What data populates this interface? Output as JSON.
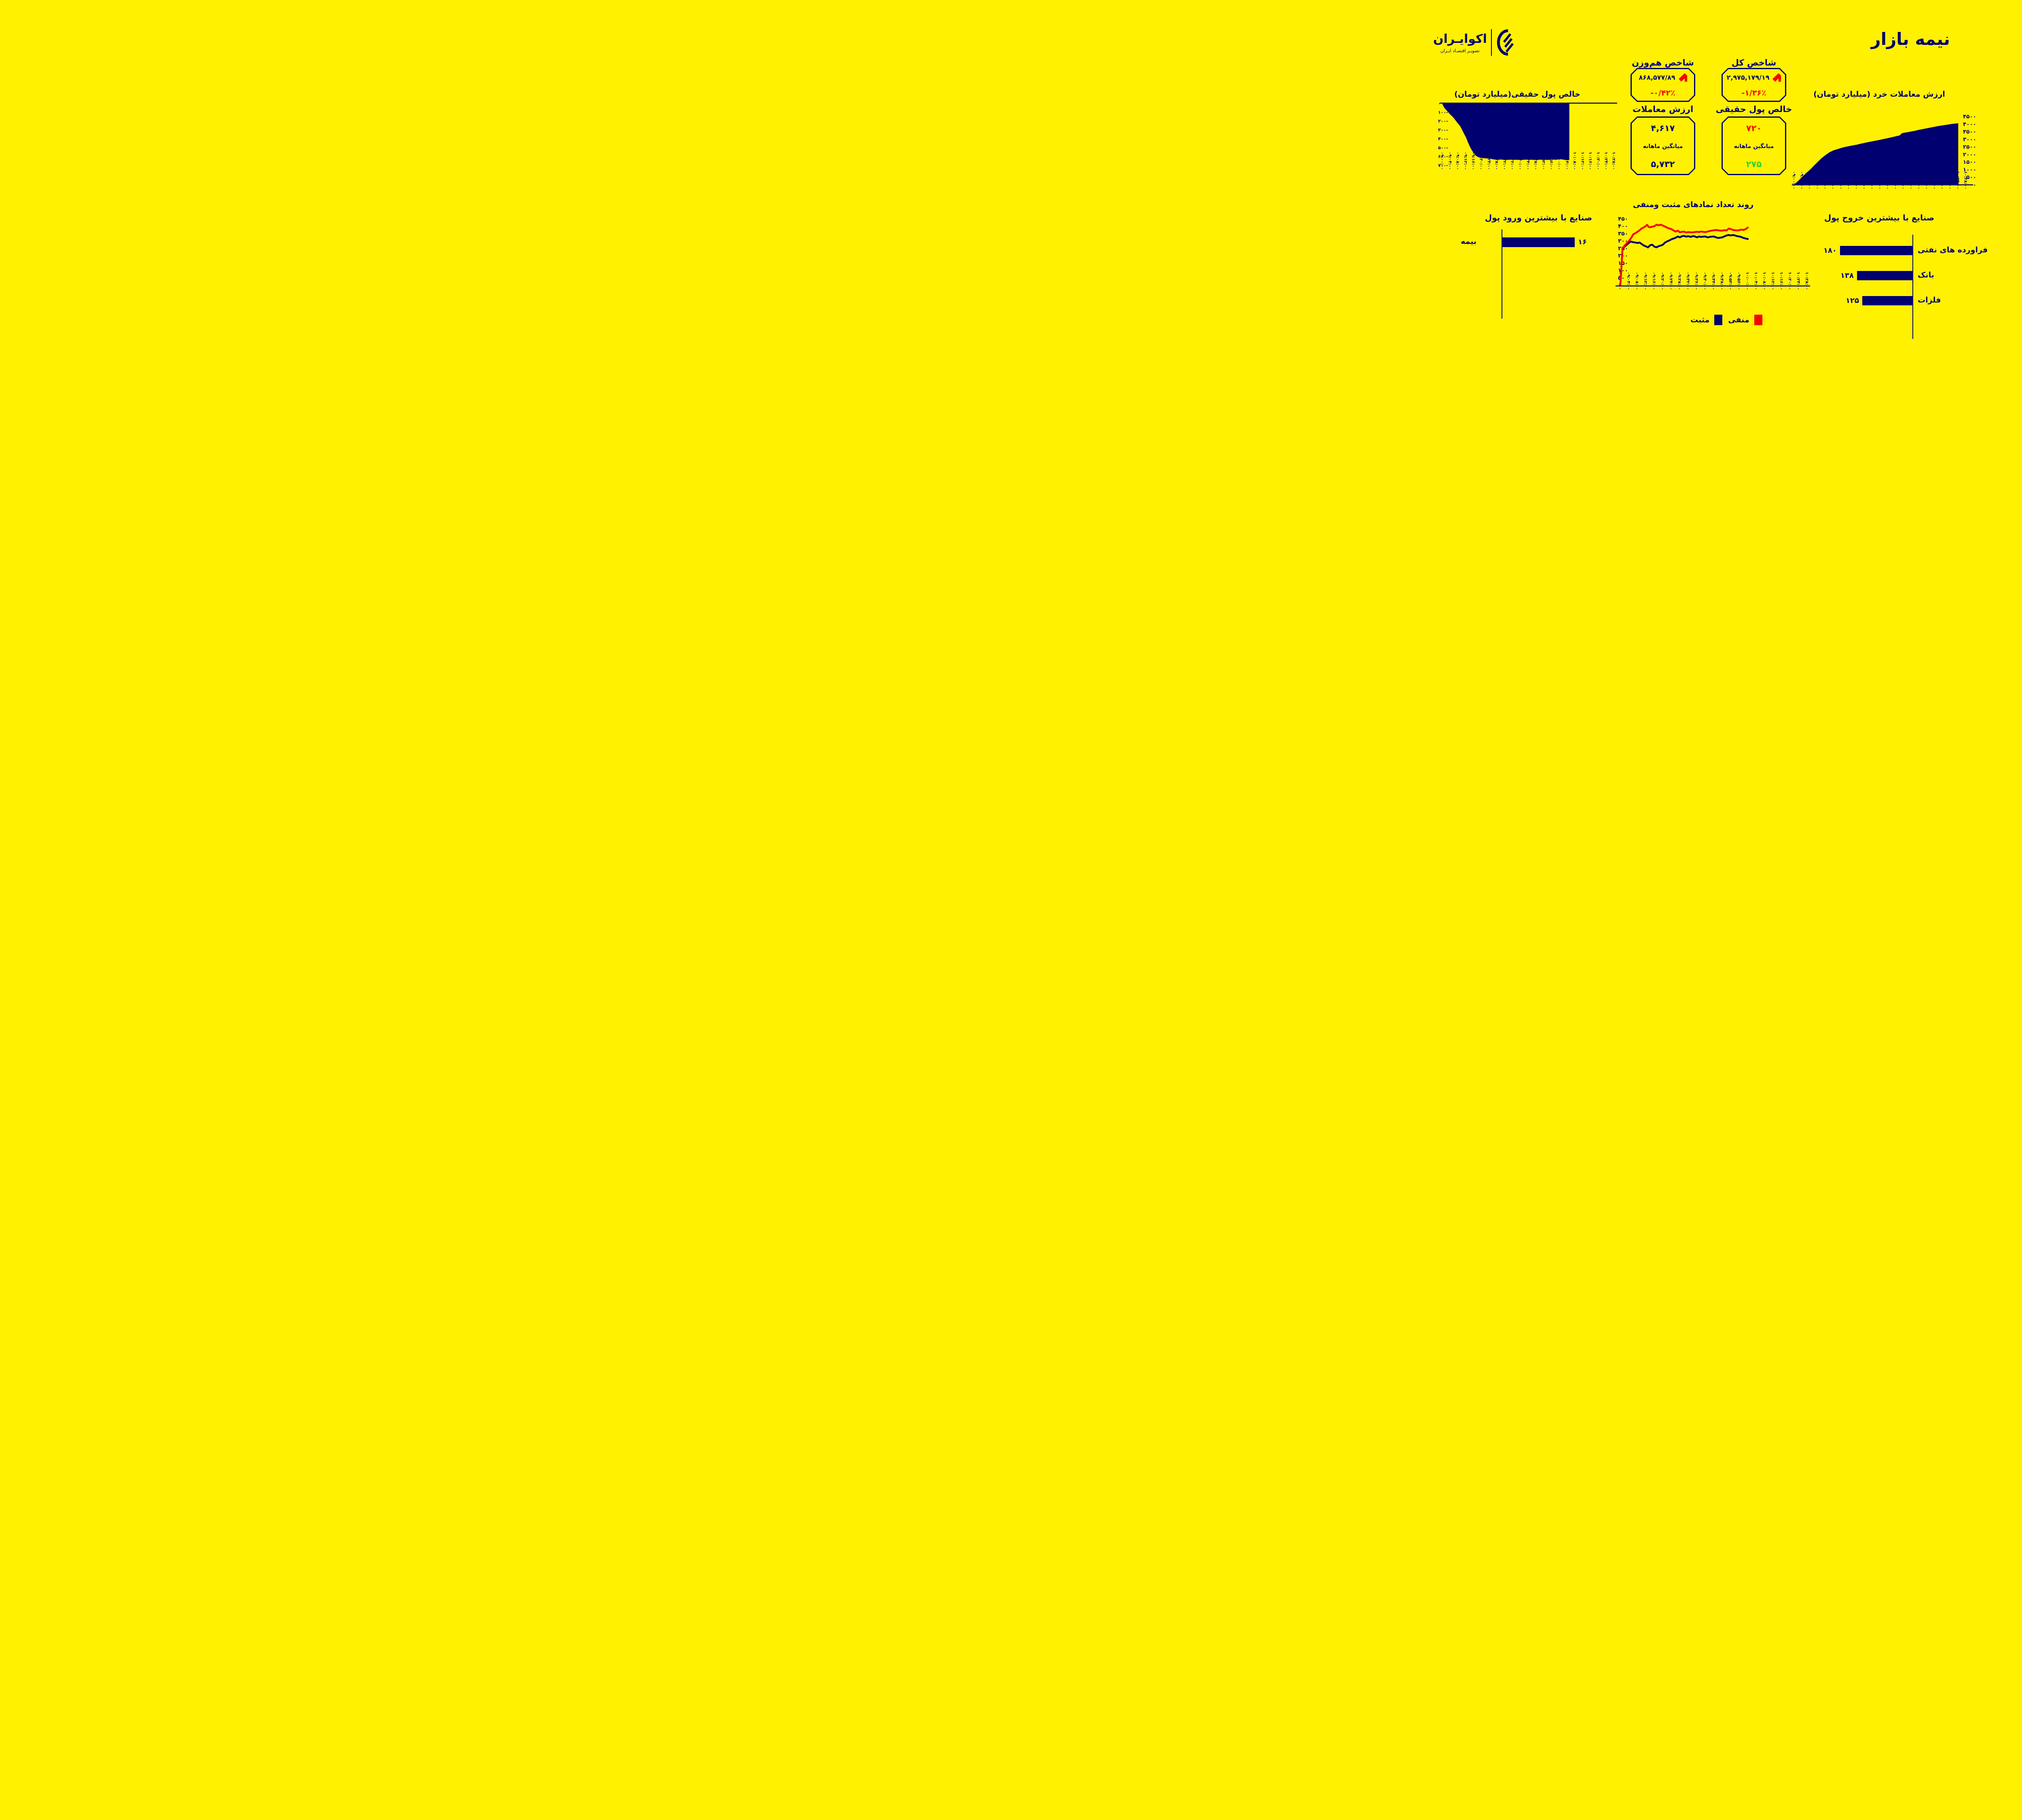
{
  "page": {
    "title": "نیمه بازار",
    "background_color": "#FFF100",
    "navy_color": "#000070",
    "red_color": "#F80000",
    "green_color": "#2ED32E"
  },
  "logo": {
    "name": "اکوایـران",
    "tagline": "تصویـر اقتصـاد ایـران"
  },
  "stats": {
    "equal_weight_index": {
      "title": "شاخص هم‌وزن",
      "value": "۸۶۸,۵۷۷/۸۹",
      "change": "-۰/۴۲٪",
      "direction": "down"
    },
    "total_index": {
      "title": "شاخص کل",
      "value": "۲,۹۷۵,۱۷۹/۱۹",
      "change": "-۱/۳۶٪",
      "direction": "down"
    },
    "trade_value": {
      "title": "ارزش معاملات",
      "value": "۴,۶۱۷",
      "avg_label": "میانگین ماهانه",
      "avg_value": "۵,۷۳۲"
    },
    "net_real_money": {
      "title": "خالص پول حقیقی",
      "value": "۷۲۰",
      "avg_label": "میانگین ماهانه",
      "avg_value": "۲۷۵"
    }
  },
  "chart_data": [
    {
      "type": "area",
      "title": "خالص پول حقیقی(میلیارد تومان)",
      "ylabel": "میلیارد تومان",
      "ylim": [
        -700,
        0
      ],
      "y_ticks": [
        "۰",
        "-۱۰۰",
        "-۲۰۰",
        "-۳۰۰",
        "-۴۰۰",
        "-۵۰۰",
        "-۶۰۰",
        "-۷۰۰"
      ],
      "x_tick_labels": [
        "۰۹:۰۰:۰۰",
        "۰۹:۰۴:۰۰",
        "۰۹:۰۸:۰۰",
        "۰۹:۱۲:۰۰",
        "۰۹:۱۶:۰۰",
        "۰۹:۲۰:۰۰",
        "۰۹:۲۴:۰۰",
        "۰۹:۲۸:۰۰",
        "۰۹:۳۲:۰۰",
        "۰۹:۳۶:۰۰",
        "۰۹:۴۰:۰۰",
        "۰۹:۴۴:۰۰",
        "۰۹:۴۸:۰۰",
        "۰۹:۵۲:۰۰",
        "۰۹:۵۶:۰۰",
        "۱۰:۰۰:۰۰",
        "۱۰:۰۴:۰۰",
        "۱۰:۰۸:۰۰",
        "۱۰:۱۲:۰۰",
        "۱۰:۱۶:۰۰",
        "۱۰:۲۰:۰۰",
        "۱۰:۲۴:۰۰",
        "۱۰:۲۸:۰۰"
      ],
      "x_minutes_domain": [
        0,
        88
      ],
      "fill_color": "#000070",
      "points": [
        [
          0,
          -15
        ],
        [
          1,
          -55
        ],
        [
          2,
          -80
        ],
        [
          3,
          -105
        ],
        [
          4,
          -130
        ],
        [
          5,
          -150
        ],
        [
          6,
          -175
        ],
        [
          7,
          -205
        ],
        [
          8,
          -232
        ],
        [
          9,
          -258
        ],
        [
          10,
          -300
        ],
        [
          11,
          -345
        ],
        [
          12,
          -385
        ],
        [
          13,
          -440
        ],
        [
          14,
          -490
        ],
        [
          15,
          -532
        ],
        [
          16,
          -565
        ],
        [
          17,
          -592
        ],
        [
          18,
          -607
        ],
        [
          19,
          -616
        ],
        [
          20,
          -620
        ],
        [
          22,
          -624
        ],
        [
          24,
          -627
        ],
        [
          26,
          -636
        ],
        [
          28,
          -642
        ],
        [
          30,
          -638
        ],
        [
          32,
          -643
        ],
        [
          34,
          -641
        ],
        [
          36,
          -639
        ],
        [
          38,
          -641
        ],
        [
          40,
          -643
        ],
        [
          42,
          -640
        ],
        [
          44,
          -639
        ],
        [
          46,
          -641
        ],
        [
          48,
          -643
        ],
        [
          50,
          -640
        ],
        [
          52,
          -639
        ],
        [
          54,
          -643
        ],
        [
          56,
          -636
        ],
        [
          58,
          -641
        ],
        [
          60,
          -634
        ],
        [
          62,
          -639
        ],
        [
          64,
          -646
        ],
        [
          65,
          -641
        ]
      ]
    },
    {
      "type": "area",
      "title": "ارزش معاملات خرد (میلیارد تومان)",
      "ylabel": "میلیارد تومان",
      "ylim": [
        0,
        4500
      ],
      "y_ticks": [
        "۴۵۰۰",
        "۴۰۰۰",
        "۳۵۰۰",
        "۳۰۰۰",
        "۲۵۰۰",
        "۲۰۰۰",
        "۱۵۰۰",
        "۱۰۰۰",
        "۵۰۰",
        "۰"
      ],
      "x_tick_labels": [
        "۰۹:۰۰:۰۰",
        "۰۹:۰۴:۰۰",
        "۰۹:۰۸:۰۰",
        "۰۹:۱۲:۰۰",
        "۰۹:۱۶:۰۰",
        "۰۹:۲۰:۰۰",
        "۰۹:۲۴:۰۰",
        "۰۹:۲۸:۰۰",
        "۰۹:۳۲:۰۰",
        "۰۹:۳۶:۰۰",
        "۰۹:۴۰:۰۰",
        "۰۹:۴۴:۰۰",
        "۰۹:۴۸:۰۰",
        "۰۹:۵۲:۰۰",
        "۰۹:۵۶:۰۰",
        "۱۰:۰۰:۰۰",
        "۱۰:۰۴:۰۰",
        "۱۰:۰۸:۰۰",
        "۱۰:۱۲:۰۰",
        "۱۰:۱۶:۰۰",
        "۱۰:۲۰:۰۰",
        "۱۰:۲۴:۰۰",
        "۱۰:۲۸:۰۰"
      ],
      "x_minutes_domain": [
        0,
        88
      ],
      "fill_color": "#000070",
      "points": [
        [
          0,
          30
        ],
        [
          2,
          260
        ],
        [
          4,
          520
        ],
        [
          6,
          770
        ],
        [
          8,
          990
        ],
        [
          10,
          1260
        ],
        [
          12,
          1510
        ],
        [
          14,
          1760
        ],
        [
          16,
          1960
        ],
        [
          18,
          2140
        ],
        [
          20,
          2265
        ],
        [
          22,
          2345
        ],
        [
          24,
          2425
        ],
        [
          26,
          2495
        ],
        [
          28,
          2545
        ],
        [
          30,
          2595
        ],
        [
          32,
          2645
        ],
        [
          34,
          2705
        ],
        [
          36,
          2765
        ],
        [
          38,
          2815
        ],
        [
          40,
          2865
        ],
        [
          42,
          2915
        ],
        [
          44,
          2965
        ],
        [
          46,
          3025
        ],
        [
          48,
          3075
        ],
        [
          50,
          3135
        ],
        [
          52,
          3195
        ],
        [
          54,
          3255
        ],
        [
          55,
          3385
        ],
        [
          56,
          3425
        ],
        [
          58,
          3465
        ],
        [
          60,
          3515
        ],
        [
          62,
          3565
        ],
        [
          64,
          3625
        ],
        [
          66,
          3675
        ],
        [
          68,
          3725
        ],
        [
          70,
          3775
        ],
        [
          72,
          3825
        ],
        [
          74,
          3875
        ],
        [
          76,
          3915
        ],
        [
          78,
          3955
        ],
        [
          80,
          3995
        ],
        [
          82,
          4025
        ],
        [
          84,
          4055
        ]
      ]
    },
    {
      "type": "line",
      "title": "روند تعداد نمادهای مثبت ومنفی",
      "ylim": [
        0,
        450
      ],
      "y_ticks": [
        "۴۵۰",
        "۴۰۰",
        "۳۵۰",
        "۳۰۰",
        "۲۵۰",
        "۲۰۰",
        "۱۵۰",
        "۱۰۰",
        "۵۰",
        "۰"
      ],
      "x_tick_labels": [
        "۰۹:۰۰:۰۰",
        "۰۹:۰۴:۰۰",
        "۰۹:۰۸:۰۰",
        "۰۹:۱۲:۰۰",
        "۰۹:۱۶:۰۰",
        "۰۹:۲۰:۰۰",
        "۰۹:۲۴:۰۰",
        "۰۹:۲۸:۰۰",
        "۰۹:۳۲:۰۰",
        "۰۹:۳۶:۰۰",
        "۰۹:۴۰:۰۰",
        "۰۹:۴۴:۰۰",
        "۰۹:۴۸:۰۰",
        "۰۹:۵۲:۰۰",
        "۰۹:۵۶:۰۰",
        "۱۰:۰۰:۰۰",
        "۱۰:۰۴:۰۰",
        "۱۰:۰۸:۰۰",
        "۱۰:۱۲:۰۰",
        "۱۰:۱۶:۰۰",
        "۱۰:۲۰:۰۰",
        "۱۰:۲۴:۰۰",
        "۱۰:۲۸:۰۰"
      ],
      "x_minutes_domain": [
        0,
        88
      ],
      "legend_position": "bottom-center",
      "series": [
        {
          "name": "مثبت",
          "color": "#000070",
          "points": [
            [
              1,
              250
            ],
            [
              2,
              262
            ],
            [
              3,
              274
            ],
            [
              4,
              287
            ],
            [
              5,
              296
            ],
            [
              6,
              291
            ],
            [
              7,
              289
            ],
            [
              8,
              286
            ],
            [
              9,
              289
            ],
            [
              10,
              279
            ],
            [
              11,
              269
            ],
            [
              12,
              263
            ],
            [
              13,
              256
            ],
            [
              14,
              271
            ],
            [
              15,
              274
            ],
            [
              16,
              261
            ],
            [
              17,
              257
            ],
            [
              18,
              264
            ],
            [
              19,
              269
            ],
            [
              20,
              274
            ],
            [
              21,
              289
            ],
            [
              22,
              297
            ],
            [
              23,
              303
            ],
            [
              24,
              311
            ],
            [
              25,
              316
            ],
            [
              26,
              321
            ],
            [
              27,
              330
            ],
            [
              28,
              324
            ],
            [
              29,
              332
            ],
            [
              30,
              334
            ],
            [
              31,
              329
            ],
            [
              32,
              332
            ],
            [
              33,
              327
            ],
            [
              34,
              332
            ],
            [
              35,
              331
            ],
            [
              36,
              324
            ],
            [
              37,
              330
            ],
            [
              38,
              327
            ],
            [
              39,
              329
            ],
            [
              40,
              330
            ],
            [
              41,
              324
            ],
            [
              42,
              327
            ],
            [
              43,
              329
            ],
            [
              44,
              330
            ],
            [
              45,
              324
            ],
            [
              46,
              320
            ],
            [
              47,
              322
            ],
            [
              48,
              324
            ],
            [
              49,
              331
            ],
            [
              50,
              337
            ],
            [
              51,
              340
            ],
            [
              52,
              337
            ],
            [
              53,
              340
            ],
            [
              54,
              337
            ],
            [
              55,
              332
            ],
            [
              56,
              330
            ],
            [
              57,
              326
            ],
            [
              58,
              320
            ],
            [
              59,
              316
            ],
            [
              60,
              313
            ]
          ]
        },
        {
          "name": "منفی",
          "color": "#F80000",
          "points": [
            [
              0,
              5
            ],
            [
              0.6,
              150
            ],
            [
              1,
              250
            ],
            [
              2,
              268
            ],
            [
              3,
              285
            ],
            [
              4,
              300
            ],
            [
              5,
              318
            ],
            [
              6,
              345
            ],
            [
              7,
              352
            ],
            [
              8,
              362
            ],
            [
              9,
              372
            ],
            [
              10,
              385
            ],
            [
              11,
              392
            ],
            [
              12,
              402
            ],
            [
              12.6,
              409
            ],
            [
              13.2,
              396
            ],
            [
              14,
              392
            ],
            [
              15,
              397
            ],
            [
              16,
              400
            ],
            [
              17,
              410
            ],
            [
              18,
              406
            ],
            [
              19,
              410
            ],
            [
              20,
              404
            ],
            [
              21,
              397
            ],
            [
              22,
              390
            ],
            [
              23,
              384
            ],
            [
              24,
              380
            ],
            [
              25,
              371
            ],
            [
              26,
              363
            ],
            [
              27,
              370
            ],
            [
              28,
              358
            ],
            [
              29,
              362
            ],
            [
              30,
              363
            ],
            [
              31,
              357
            ],
            [
              32,
              360
            ],
            [
              33,
              358
            ],
            [
              34,
              358
            ],
            [
              35,
              360
            ],
            [
              36,
              362
            ],
            [
              37,
              360
            ],
            [
              38,
              364
            ],
            [
              39,
              361
            ],
            [
              40,
              360
            ],
            [
              41,
              363
            ],
            [
              42,
              367
            ],
            [
              43,
              370
            ],
            [
              44,
              372
            ],
            [
              45,
              374
            ],
            [
              46,
              372
            ],
            [
              47,
              370
            ],
            [
              48,
              370
            ],
            [
              49,
              373
            ],
            [
              50,
              371
            ],
            [
              51,
              384
            ],
            [
              52,
              380
            ],
            [
              53,
              374
            ],
            [
              54,
              372
            ],
            [
              55,
              371
            ],
            [
              56,
              373
            ],
            [
              57,
              377
            ],
            [
              58,
              374
            ],
            [
              59,
              380
            ],
            [
              60,
              391
            ]
          ]
        }
      ]
    },
    {
      "type": "bar",
      "title": "صنایع با بیشترین ورود پول",
      "orientation": "horizontal-right",
      "categories": [
        "بیمه"
      ],
      "values": [
        16
      ],
      "value_labels": [
        "۱۶"
      ],
      "bar_color": "#000070"
    },
    {
      "type": "bar",
      "title": "صنایع با بیشترین خروج پول",
      "orientation": "horizontal-left",
      "categories": [
        "فراورده های نفتی",
        "بانک",
        "فلزات"
      ],
      "values": [
        180,
        138,
        125
      ],
      "value_labels": [
        "۱۸۰",
        "۱۳۸",
        "۱۲۵"
      ],
      "bar_color": "#000070"
    }
  ]
}
